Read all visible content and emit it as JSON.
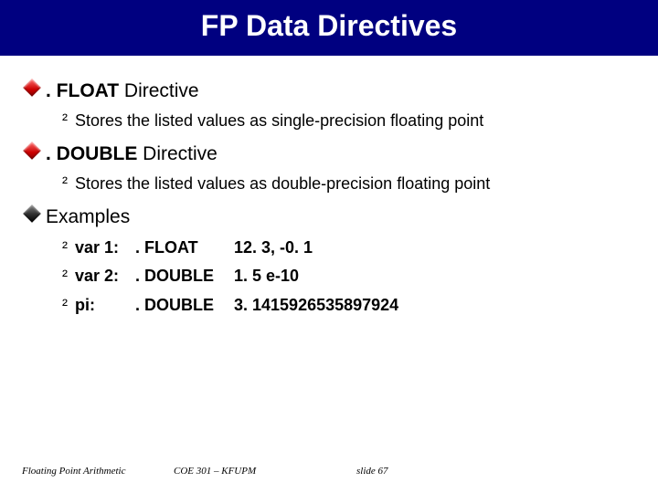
{
  "colors": {
    "title_bg": "#000080",
    "title_fg": "#ffffff",
    "body_fg": "#000000",
    "accent_red": "#cc0000"
  },
  "typography": {
    "title_font": "Comic Sans MS",
    "title_size_pt": 28,
    "body_font": "Arial",
    "lvl1_size_pt": 16,
    "lvl2_size_pt": 14,
    "footer_font": "Times New Roman italic",
    "footer_size_pt": 8
  },
  "title": "FP Data Directives",
  "sections": {
    "float": {
      "heading_bold": ". FLOAT",
      "heading_rest": " Directive",
      "detail": "Stores the listed values as single-precision floating point",
      "bullet_color": "red"
    },
    "double": {
      "heading_bold": ". DOUBLE",
      "heading_rest": " Directive",
      "detail": "Stores the listed values as double-precision floating point",
      "bullet_color": "red"
    },
    "examples": {
      "heading": "Examples",
      "bullet_color": "black",
      "rows": [
        {
          "label": "var 1:",
          "dir": ". FLOAT",
          "val": "12. 3, -0. 1"
        },
        {
          "label": "var 2:",
          "dir": ". DOUBLE",
          "val": "1. 5 e-10"
        },
        {
          "label": "pi:",
          "dir": ". DOUBLE",
          "val": "3. 1415926535897924"
        }
      ]
    }
  },
  "footer": {
    "left": "Floating Point Arithmetic",
    "center": "COE 301 – KFUPM",
    "right": "slide 67"
  }
}
